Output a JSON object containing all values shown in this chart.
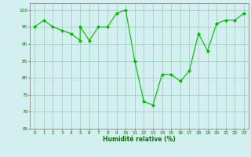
{
  "xlabel": "Humidité relative (%)",
  "x": [
    0,
    1,
    2,
    3,
    4,
    5,
    5,
    6,
    7,
    8,
    9,
    10,
    11,
    12,
    13,
    14,
    15,
    16,
    17,
    18,
    19,
    20,
    21,
    22,
    23
  ],
  "y": [
    95,
    97,
    95,
    94,
    93,
    91,
    95,
    91,
    95,
    95,
    99,
    100,
    85,
    73,
    72,
    81,
    81,
    79,
    82,
    93,
    88,
    96,
    97,
    97,
    99
  ],
  "line_color": "#00bb00",
  "marker_color": "#00bb00",
  "bg_color": "#d4efef",
  "grid_color": "#99ccbb",
  "tick_color": "#007700",
  "label_color": "#007700",
  "ylim": [
    65,
    102
  ],
  "xlim": [
    -0.5,
    23.5
  ],
  "yticks": [
    65,
    70,
    75,
    80,
    85,
    90,
    95,
    100
  ],
  "xticks": [
    0,
    1,
    2,
    3,
    4,
    5,
    6,
    7,
    8,
    9,
    10,
    11,
    12,
    13,
    14,
    15,
    16,
    17,
    18,
    19,
    20,
    21,
    22,
    23
  ]
}
